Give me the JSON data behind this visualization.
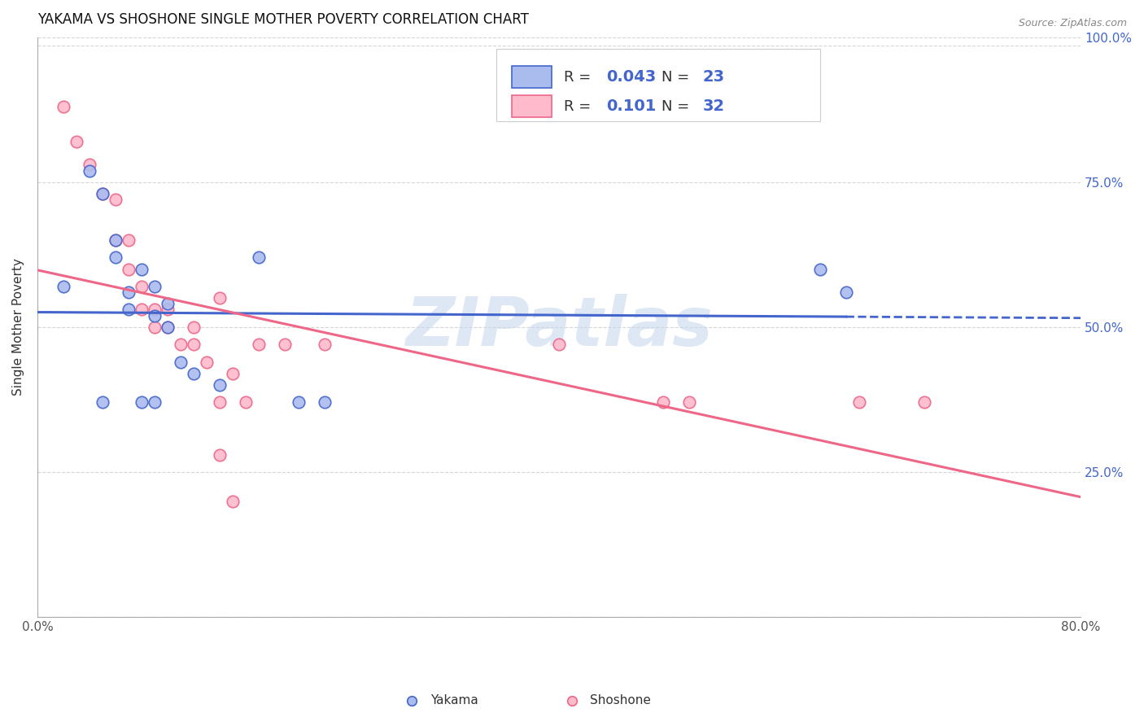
{
  "title": "YAKAMA VS SHOSHONE SINGLE MOTHER POVERTY CORRELATION CHART",
  "source": "Source: ZipAtlas.com",
  "ylabel": "Single Mother Poverty",
  "xlim": [
    0.0,
    0.8
  ],
  "ylim": [
    0.0,
    1.0
  ],
  "grid_color": "#cccccc",
  "background_color": "#ffffff",
  "yakama_color": "#aabbee",
  "shoshone_color": "#ffbbcc",
  "trendline_yakama_color": "#4466cc",
  "trendline_shoshone_color": "#ee6688",
  "legend_yakama_label": "Yakama",
  "legend_shoshone_label": "Shoshone",
  "R_yakama": "0.043",
  "N_yakama": "23",
  "R_shoshone": "0.101",
  "N_shoshone": "32",
  "yakama_x": [
    0.02,
    0.04,
    0.05,
    0.06,
    0.06,
    0.07,
    0.07,
    0.08,
    0.09,
    0.09,
    0.1,
    0.1,
    0.11,
    0.12,
    0.14,
    0.17,
    0.2,
    0.22,
    0.6,
    0.62,
    0.05,
    0.08,
    0.09
  ],
  "yakama_y": [
    0.57,
    0.77,
    0.73,
    0.65,
    0.62,
    0.56,
    0.53,
    0.6,
    0.57,
    0.52,
    0.54,
    0.5,
    0.44,
    0.42,
    0.4,
    0.62,
    0.37,
    0.37,
    0.6,
    0.56,
    0.37,
    0.37,
    0.37
  ],
  "shoshone_x": [
    0.02,
    0.03,
    0.04,
    0.05,
    0.06,
    0.06,
    0.07,
    0.07,
    0.08,
    0.08,
    0.09,
    0.09,
    0.1,
    0.1,
    0.11,
    0.12,
    0.12,
    0.13,
    0.14,
    0.15,
    0.17,
    0.19,
    0.22,
    0.4,
    0.48,
    0.5,
    0.63,
    0.68,
    0.14,
    0.15,
    0.14,
    0.16
  ],
  "shoshone_y": [
    0.88,
    0.82,
    0.78,
    0.73,
    0.72,
    0.65,
    0.65,
    0.6,
    0.57,
    0.53,
    0.53,
    0.5,
    0.53,
    0.5,
    0.47,
    0.5,
    0.47,
    0.44,
    0.55,
    0.42,
    0.47,
    0.47,
    0.47,
    0.47,
    0.37,
    0.37,
    0.37,
    0.37,
    0.28,
    0.2,
    0.37,
    0.37
  ],
  "marker_size": 110,
  "marker_linewidth": 1.2,
  "watermark_text": "ZIPatlas",
  "watermark_color": "#c8d8ee",
  "watermark_fontsize": 60,
  "ytick_positions": [
    0.0,
    0.25,
    0.5,
    0.75,
    1.0
  ],
  "right_ytick_labels": [
    "25.0%",
    "50.0%",
    "75.0%",
    "100.0%"
  ],
  "right_ytick_positions": [
    0.25,
    0.5,
    0.75,
    1.0
  ],
  "label_color": "#4466cc"
}
